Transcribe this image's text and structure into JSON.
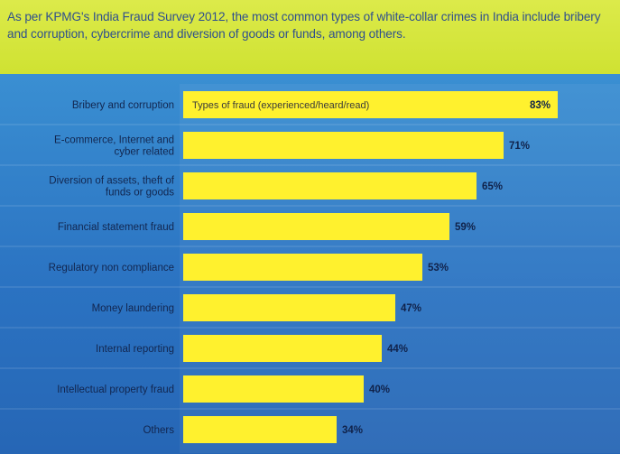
{
  "header": {
    "text": "As per KPMG's India Fraud Survey 2012, the most common types of white-collar crimes in India include bribery and corruption, cybercrime and diversion of goods or funds, among others."
  },
  "colors": {
    "header_bg": "#d4e63c",
    "header_text": "#2f4f8e",
    "panel_bg": "#2f7cc9",
    "bar": "#fff12e"
  },
  "chart_data": {
    "type": "bar",
    "orientation": "horizontal",
    "series_name": "Types of fraud (experienced/heard/read)",
    "categories": [
      [
        "Bribery and corruption"
      ],
      [
        "E-commerce, Internet and",
        "cyber related"
      ],
      [
        "Diversion of assets, theft of",
        "funds or goods"
      ],
      [
        "Financial statement fraud"
      ],
      [
        "Regulatory non compliance"
      ],
      [
        "Money laundering"
      ],
      [
        "Internal reporting"
      ],
      [
        "Intellectual property fraud"
      ],
      [
        "Others"
      ]
    ],
    "values": [
      83,
      71,
      65,
      59,
      53,
      47,
      44,
      40,
      34
    ],
    "value_labels": [
      "83%",
      "71%",
      "65%",
      "59%",
      "53%",
      "47%",
      "44%",
      "40%",
      "34%"
    ],
    "unit": "%"
  }
}
